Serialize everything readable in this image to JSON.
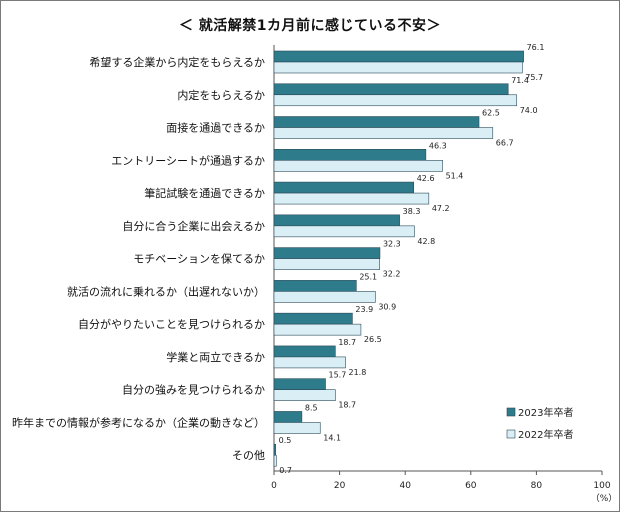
{
  "chart_data": {
    "type": "bar",
    "orientation": "horizontal",
    "title": "＜ 就活解禁1カ月前に感じている不安＞",
    "categories": [
      "希望する企業から内定をもらえるか",
      "内定をもらえるか",
      "面接を通過できるか",
      "エントリーシートが通過するか",
      "筆記試験を通過できるか",
      "自分に合う企業に出会えるか",
      "モチベーションを保てるか",
      "就活の流れに乗れるか（出遅れないか）",
      "自分がやりたいことを見つけられるか",
      "学業と両立できるか",
      "自分の強みを見つけられるか",
      "昨年までの情報が参考になるか（企業の動きなど）",
      "その他"
    ],
    "series": [
      {
        "name": "2023年卒者",
        "color": "#2e7b8c",
        "values": [
          76.1,
          71.4,
          62.5,
          46.3,
          42.6,
          38.3,
          32.3,
          25.1,
          23.9,
          18.7,
          15.7,
          8.5,
          0.5
        ],
        "labels": [
          "76.1",
          "71.4",
          "62.5",
          "46.3",
          "42.6",
          "38.3",
          "32.3",
          "25.1",
          "23.9",
          "18.7",
          "15.7",
          "8.5",
          "0.5"
        ]
      },
      {
        "name": "2022年卒者",
        "color": "#daeef6",
        "values": [
          75.7,
          74.0,
          66.7,
          51.4,
          47.2,
          42.8,
          32.2,
          30.9,
          26.5,
          21.8,
          18.7,
          14.1,
          0.7
        ],
        "labels": [
          "75.7",
          "74.0",
          "66.7",
          "51.4",
          "47.2",
          "42.8",
          "32.2",
          "30.9",
          "26.5",
          "21.8",
          "18.7",
          "14.1",
          "0.7"
        ]
      }
    ],
    "xlim": [
      0,
      100
    ],
    "xticks": [
      "0",
      "20",
      "40",
      "60",
      "80",
      "100"
    ],
    "xunit": "（%）",
    "legend_position": "bottom-right",
    "grid": false
  }
}
